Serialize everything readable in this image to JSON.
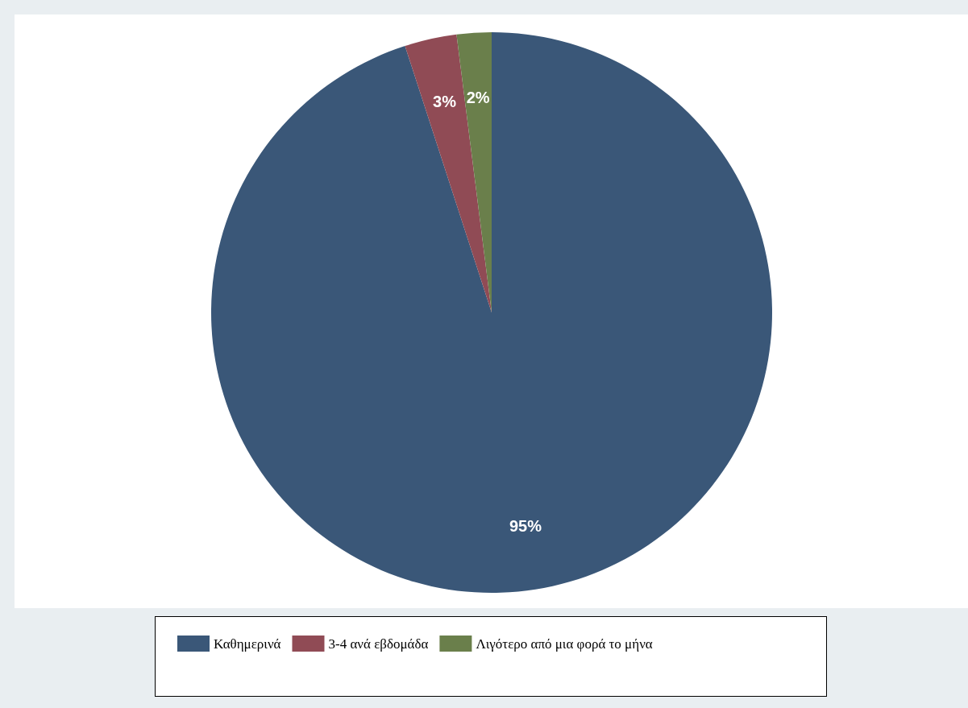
{
  "chart_data": {
    "type": "pie",
    "categories": [
      "Καθημερινά",
      "3-4 ανά εβδομάδα",
      "Λιγότερο από μια φορά το μήνα"
    ],
    "values": [
      95,
      3,
      2
    ],
    "value_labels": [
      "95%",
      "3%",
      "2%"
    ],
    "colors": [
      "#3a5778",
      "#904b55",
      "#6a7f4b"
    ],
    "legend": "bottom"
  }
}
